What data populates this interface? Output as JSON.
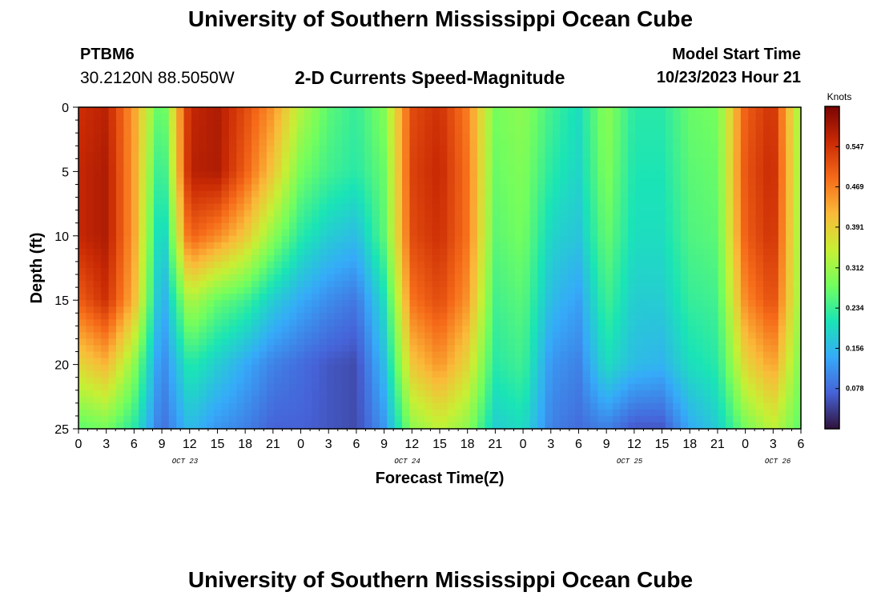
{
  "header": {
    "title": "University of Southern Mississippi Ocean Cube",
    "station_id": "PTBM6",
    "coords": "30.2120N  88.5050W",
    "product": "2-D Currents Speed-Magnitude",
    "model_start_label": "Model Start Time",
    "model_start_value": "10/23/2023 Hour 21"
  },
  "footer": {
    "title": "University of Southern Mississippi Ocean Cube"
  },
  "chart_data": {
    "type": "heatmap",
    "title": "2-D Currents Speed-Magnitude",
    "xlabel": "Forecast Time(Z)",
    "ylabel": "Depth (ft)",
    "x_unit": "hours",
    "x_range": [
      0,
      78
    ],
    "y_range": [
      0,
      25
    ],
    "y_ticks": [
      0,
      5,
      10,
      15,
      20,
      25
    ],
    "x_ticks": [
      {
        "h": 0,
        "label": "0"
      },
      {
        "h": 3,
        "label": "3"
      },
      {
        "h": 6,
        "label": "6"
      },
      {
        "h": 9,
        "label": "9"
      },
      {
        "h": 12,
        "label": "12"
      },
      {
        "h": 15,
        "label": "15"
      },
      {
        "h": 18,
        "label": "18"
      },
      {
        "h": 21,
        "label": "21"
      },
      {
        "h": 24,
        "label": "0"
      },
      {
        "h": 27,
        "label": "3"
      },
      {
        "h": 30,
        "label": "6"
      },
      {
        "h": 33,
        "label": "9"
      },
      {
        "h": 36,
        "label": "12"
      },
      {
        "h": 39,
        "label": "15"
      },
      {
        "h": 42,
        "label": "18"
      },
      {
        "h": 45,
        "label": "21"
      },
      {
        "h": 48,
        "label": "0"
      },
      {
        "h": 51,
        "label": "3"
      },
      {
        "h": 54,
        "label": "6"
      },
      {
        "h": 57,
        "label": "9"
      },
      {
        "h": 60,
        "label": "12"
      },
      {
        "h": 63,
        "label": "15"
      },
      {
        "h": 66,
        "label": "18"
      },
      {
        "h": 69,
        "label": "21"
      },
      {
        "h": 72,
        "label": "0"
      },
      {
        "h": 75,
        "label": "3"
      },
      {
        "h": 78,
        "label": "6"
      }
    ],
    "date_labels": [
      {
        "h": 11.5,
        "label": "OCT 23"
      },
      {
        "h": 35.5,
        "label": "OCT 24"
      },
      {
        "h": 59.5,
        "label": "OCT 25"
      },
      {
        "h": 75.5,
        "label": "OCT 26"
      }
    ],
    "colorbar": {
      "unit": "Knots",
      "min": 0.0,
      "max": 0.625,
      "ticks": [
        "0.547",
        "0.469",
        "0.391",
        "0.312",
        "0.234",
        "0.156",
        "0.078"
      ],
      "colors": [
        "#30123b",
        "#4662d7",
        "#36aaf9",
        "#1ae4b6",
        "#72fe5e",
        "#c8ef34",
        "#faba39",
        "#f66b19",
        "#ca2a04",
        "#7a0403"
      ]
    },
    "value_grid": {
      "note": "current speed (knots) sampled every 3 h (x=0..78) at depth rows 0,5,10,15,20,25 ft; estimated from the color scale",
      "depths_ft": [
        0,
        5,
        10,
        15,
        20,
        25
      ],
      "hours": [
        0,
        3,
        6,
        9,
        12,
        15,
        18,
        21,
        24,
        27,
        30,
        33,
        36,
        39,
        42,
        45,
        48,
        51,
        54,
        57,
        60,
        63,
        66,
        69,
        72,
        75,
        78
      ],
      "values": [
        [
          0.55,
          0.57,
          0.44,
          0.24,
          0.56,
          0.58,
          0.52,
          0.45,
          0.33,
          0.26,
          0.23,
          0.29,
          0.52,
          0.55,
          0.47,
          0.28,
          0.3,
          0.24,
          0.2,
          0.3,
          0.22,
          0.22,
          0.27,
          0.28,
          0.5,
          0.55,
          0.3
        ],
        [
          0.56,
          0.58,
          0.44,
          0.2,
          0.57,
          0.58,
          0.5,
          0.4,
          0.28,
          0.24,
          0.22,
          0.27,
          0.53,
          0.56,
          0.48,
          0.27,
          0.29,
          0.22,
          0.19,
          0.29,
          0.21,
          0.21,
          0.26,
          0.27,
          0.51,
          0.56,
          0.3
        ],
        [
          0.56,
          0.58,
          0.44,
          0.16,
          0.5,
          0.46,
          0.4,
          0.3,
          0.22,
          0.18,
          0.16,
          0.26,
          0.52,
          0.55,
          0.48,
          0.26,
          0.28,
          0.19,
          0.17,
          0.27,
          0.2,
          0.2,
          0.25,
          0.26,
          0.5,
          0.55,
          0.3
        ],
        [
          0.5,
          0.55,
          0.42,
          0.13,
          0.33,
          0.27,
          0.24,
          0.18,
          0.14,
          0.11,
          0.09,
          0.2,
          0.48,
          0.52,
          0.45,
          0.24,
          0.26,
          0.16,
          0.13,
          0.24,
          0.18,
          0.18,
          0.23,
          0.24,
          0.46,
          0.52,
          0.3
        ],
        [
          0.38,
          0.42,
          0.3,
          0.1,
          0.22,
          0.18,
          0.14,
          0.1,
          0.08,
          0.06,
          0.05,
          0.16,
          0.4,
          0.45,
          0.38,
          0.22,
          0.24,
          0.12,
          0.1,
          0.2,
          0.16,
          0.15,
          0.2,
          0.22,
          0.38,
          0.44,
          0.28
        ],
        [
          0.26,
          0.28,
          0.22,
          0.08,
          0.16,
          0.12,
          0.1,
          0.07,
          0.07,
          0.06,
          0.05,
          0.12,
          0.3,
          0.34,
          0.3,
          0.18,
          0.2,
          0.1,
          0.08,
          0.1,
          0.06,
          0.06,
          0.14,
          0.18,
          0.28,
          0.34,
          0.26
        ]
      ]
    }
  }
}
